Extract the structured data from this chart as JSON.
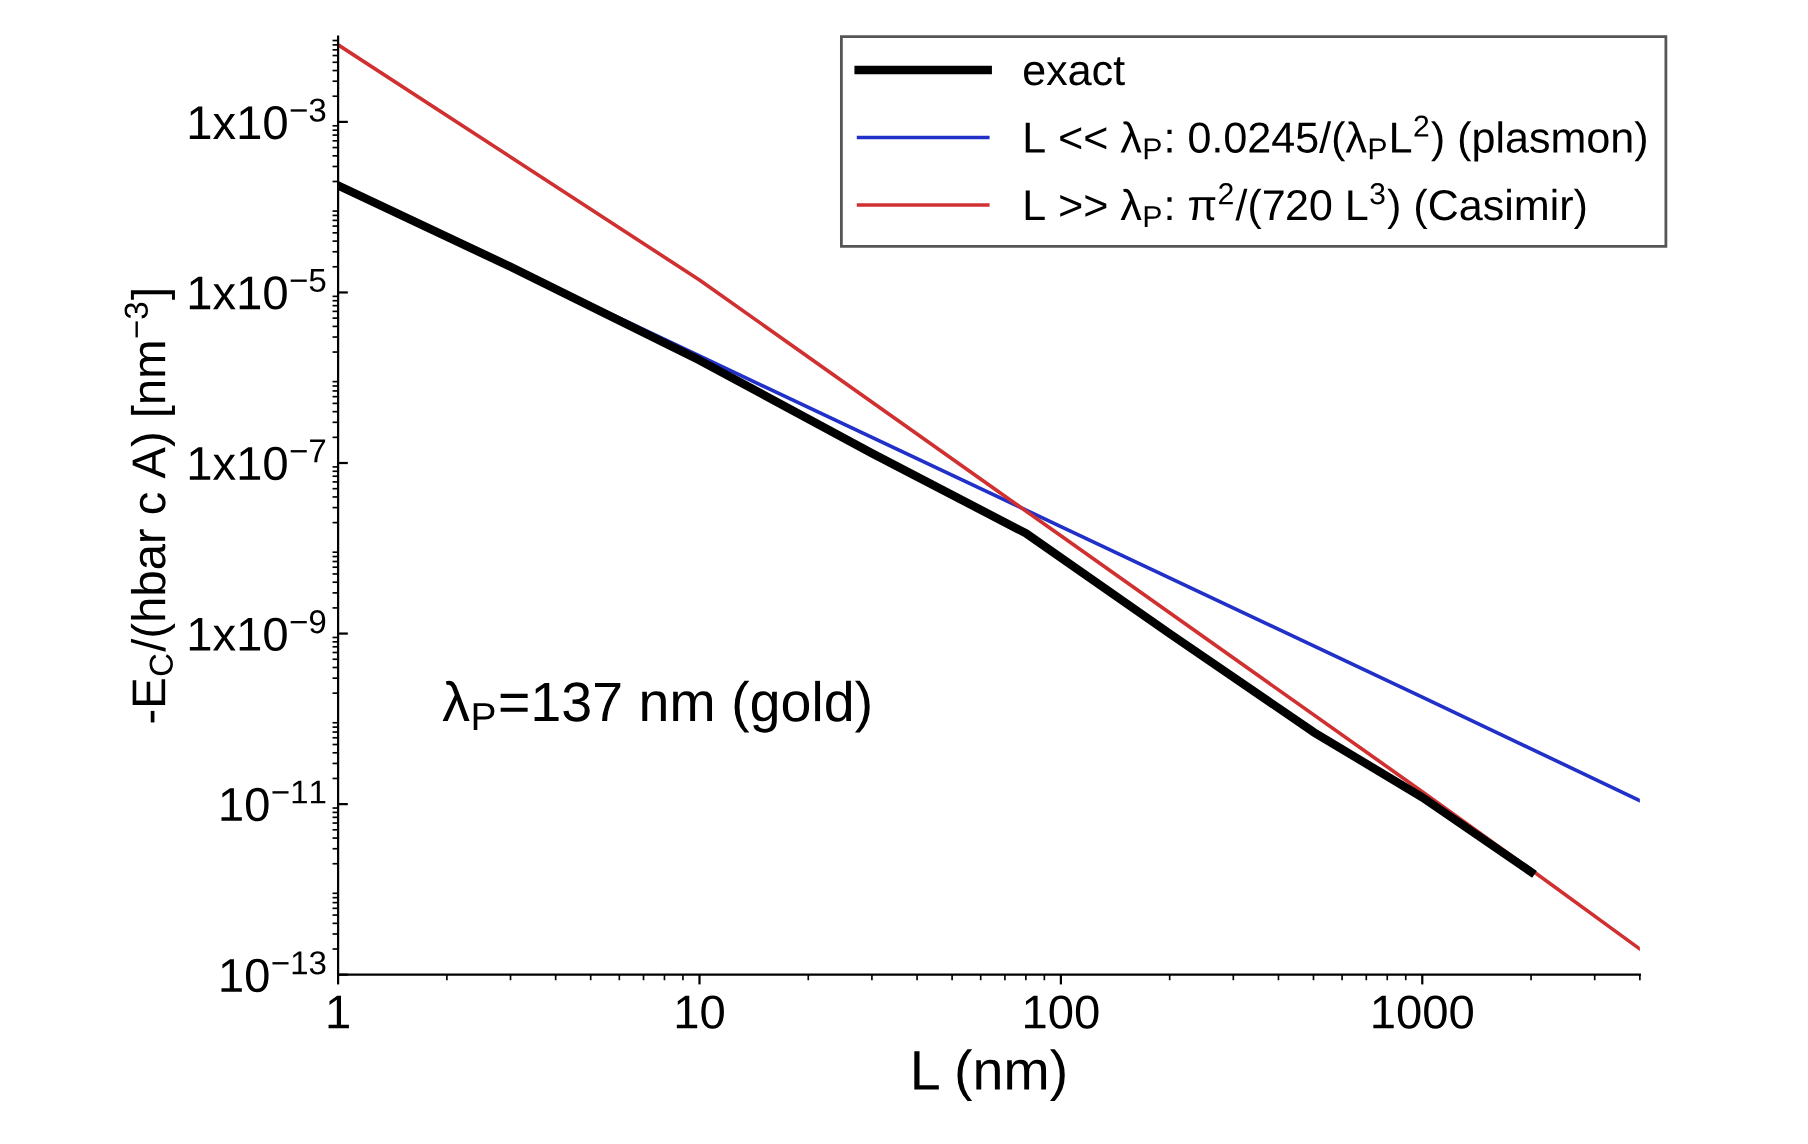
{
  "chart_data": {
    "type": "line",
    "xlabel": "L (nm)",
    "ylabel": "-E$_{C}$/(hbar c A) [nm$^{−3}$]",
    "log": "xy",
    "grid": false,
    "legend": "top right",
    "line_style": "solid",
    "marker": "none",
    "xlim": [
      1,
      4000
    ],
    "xticks": [
      1,
      10,
      100,
      1000
    ],
    "ylim": [
      1e-13,
      0.01
    ],
    "yticks": [
      {
        "value": 1e-13,
        "label": "10$^{−13}$"
      },
      {
        "value": 1e-11,
        "label": "10$^{−11}$"
      },
      {
        "value": 1e-09,
        "label": "1x10$^{−9}$"
      },
      {
        "value": 1e-07,
        "label": "1x10$^{−7}$"
      },
      {
        "value": 1e-05,
        "label": "1x10$^{−5}$"
      },
      {
        "value": 0.001,
        "label": "1x10$^{−3}$"
      }
    ],
    "series": [
      {
        "name": "exact",
        "color": "#000000",
        "x": [
          1,
          3,
          10,
          30,
          80,
          200,
          500,
          1000,
          2000
        ],
        "values": [
          0.00018,
          2e-05,
          1.6e-06,
          1.3e-07,
          1.5e-08,
          1e-09,
          7e-11,
          1.2e-11,
          1.6e-12
        ]
      },
      {
        "name": "L << λ$_{P}$: 0.0245/(λ$_{P}$L$^{2}$) (plasmon)",
        "color": "#2030c8",
        "x": [
          1,
          10,
          100,
          1000,
          4000
        ],
        "values": [
          0.00018,
          1.8e-06,
          1.8e-08,
          1.8e-10,
          1.1e-11
        ]
      },
      {
        "name": "L >> λ$_{P}$: π$^{2}$/(720 L$^{3}$) (Casimir)",
        "color": "#d03030",
        "x": [
          1,
          10,
          100,
          1000,
          2000,
          4000
        ],
        "values": [
          0.008,
          1.4e-05,
          1.4e-08,
          1.4e-11,
          1.7e-12,
          2e-13
        ]
      }
    ],
    "annotations": [
      "λ$_{P}$=137 nm (gold)"
    ]
  }
}
